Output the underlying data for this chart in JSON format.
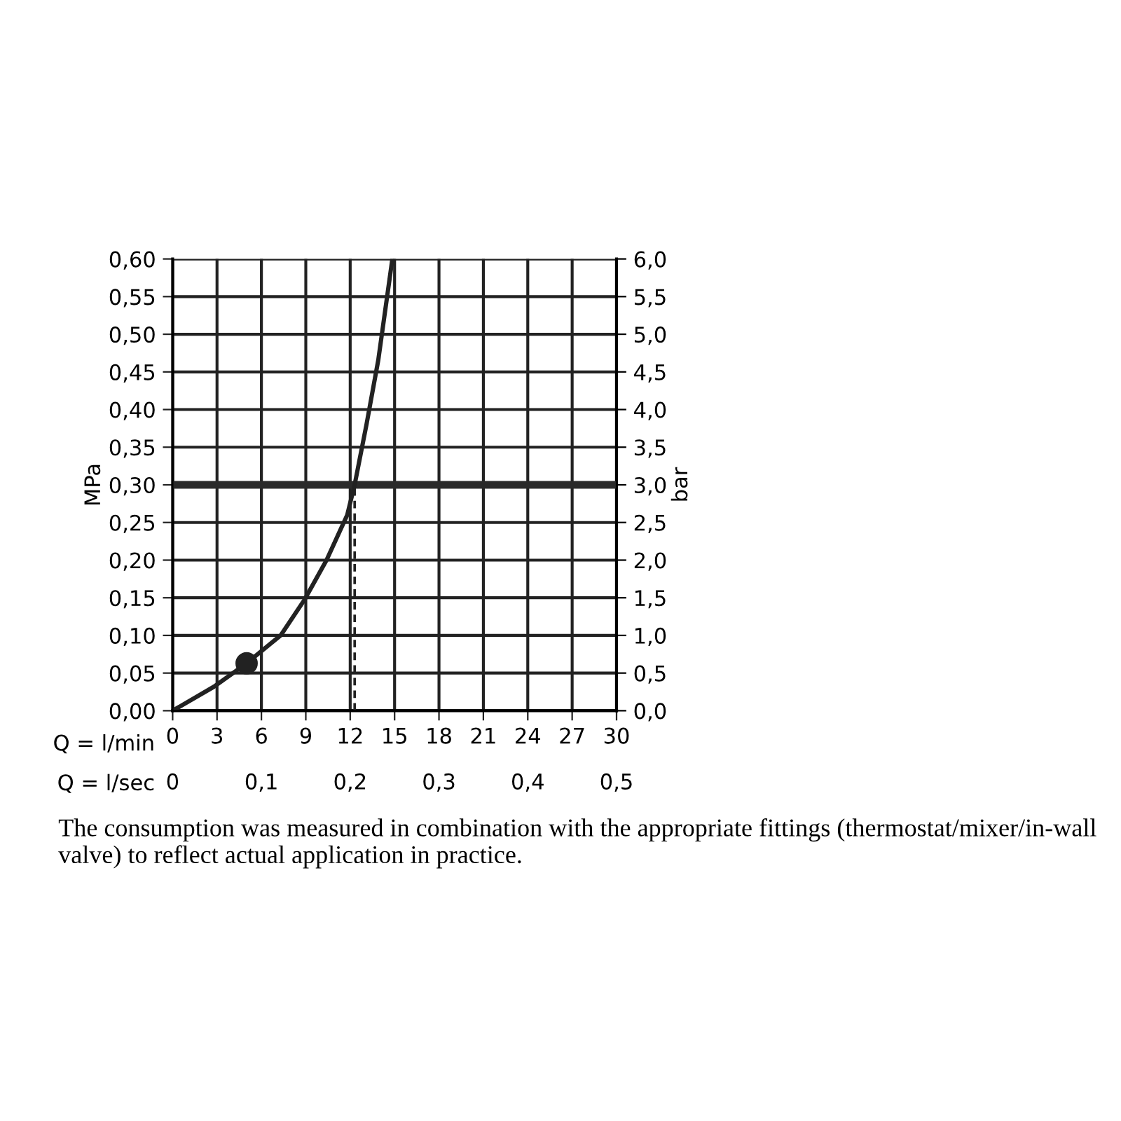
{
  "chart_data": {
    "type": "line",
    "xlabel": "Q = l/min",
    "ylabel": "MPa",
    "y2label": "bar",
    "x2label": "Q = l/sec",
    "series": [
      {
        "color": "#222222",
        "x": [
          0,
          2.8,
          5.0,
          7.3,
          8.9,
          10.4,
          11.8,
          12.3,
          13.1,
          13.9,
          14.85
        ],
        "values": [
          0,
          0.032,
          0.063,
          0.1,
          0.147,
          0.2,
          0.26,
          0.3,
          0.38,
          0.466,
          0.6
        ]
      },
      {
        "type": "line",
        "color": "#222222",
        "line_style": "dashed",
        "x": [
          12.3,
          12.3
        ],
        "values": [
          0,
          0.3
        ]
      },
      {
        "type": "scatter",
        "color": "#222222",
        "marker": "circle",
        "x": [
          5.0
        ],
        "values": [
          0.063
        ]
      }
    ],
    "xlim": [
      0,
      30
    ],
    "xticks": [
      0,
      3,
      6,
      9,
      12,
      15,
      18,
      21,
      24,
      27,
      30
    ],
    "x2lim": [
      0,
      0.5
    ],
    "x2ticks": [
      0,
      {
        "value": 0.1,
        "label": "0,1"
      },
      {
        "value": 0.2,
        "label": "0,2"
      },
      {
        "value": 0.3,
        "label": "0,3"
      },
      {
        "value": 0.4,
        "label": "0,4"
      },
      {
        "value": 0.5,
        "label": "0,5"
      }
    ],
    "ylim": [
      0,
      0.6
    ],
    "yticks": [
      {
        "value": 0,
        "label": "0,00"
      },
      {
        "value": 0.05,
        "label": "0,05"
      },
      {
        "value": 0.1,
        "label": "0,10"
      },
      {
        "value": 0.15,
        "label": "0,15"
      },
      {
        "value": 0.2,
        "label": "0,20"
      },
      {
        "value": 0.25,
        "label": "0,25"
      },
      {
        "value": 0.3,
        "label": "0,30"
      },
      {
        "value": 0.35,
        "label": "0,35"
      },
      {
        "value": 0.4,
        "label": "0,40"
      },
      {
        "value": 0.45,
        "label": "0,45"
      },
      {
        "value": 0.5,
        "label": "0,50"
      },
      {
        "value": 0.55,
        "label": "0,55"
      },
      {
        "value": 0.6,
        "label": "0,60"
      }
    ],
    "y2lim": [
      0,
      6
    ],
    "y2ticks": [
      {
        "value": 0,
        "label": "0,0"
      },
      {
        "value": 0.5,
        "label": "0,5"
      },
      {
        "value": 1,
        "label": "1,0"
      },
      {
        "value": 1.5,
        "label": "1,5"
      },
      {
        "value": 2,
        "label": "2,0"
      },
      {
        "value": 2.5,
        "label": "2,5"
      },
      {
        "value": 3,
        "label": "3,0"
      },
      {
        "value": 3.5,
        "label": "3,5"
      },
      {
        "value": 4,
        "label": "4,0"
      },
      {
        "value": 4.5,
        "label": "4,5"
      },
      {
        "value": 5,
        "label": "5,0"
      },
      {
        "value": 5.5,
        "label": "5,5"
      },
      {
        "value": 6,
        "label": "6,0"
      }
    ],
    "ref_lines": [
      {
        "axis": "y",
        "value": 0.3,
        "color": "#2a2a2a",
        "line_style": "solid"
      }
    ],
    "grid": true,
    "annotations": [
      "The consumption was measured in combination with the appropriate fittings (thermostat/mixer/in-wall valve) to reflect actual application in practice."
    ]
  }
}
